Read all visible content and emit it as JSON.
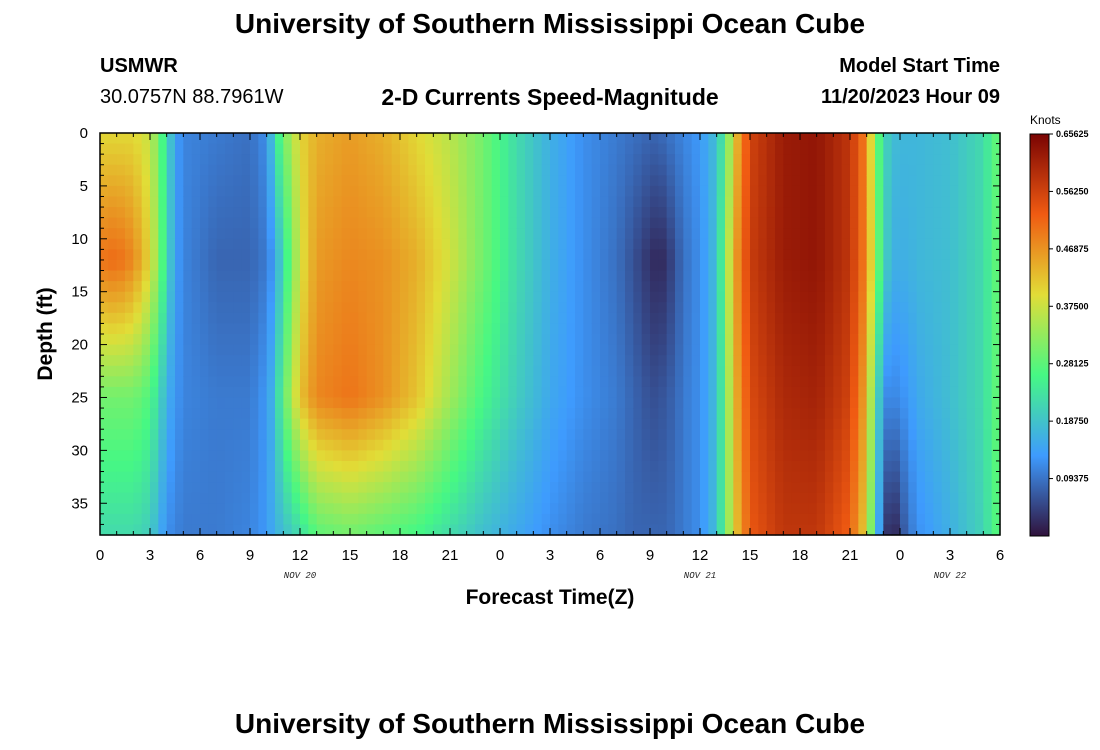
{
  "page": {
    "title_top": "University of Southern Mississippi Ocean Cube",
    "title_bottom": "University of Southern Mississippi Ocean Cube",
    "station_id": "USMWR",
    "coords": "30.0757N  88.7961W",
    "subtitle": "2-D Currents Speed-Magnitude",
    "model_start_label": "Model Start Time",
    "model_start_value": "11/20/2023 Hour 09"
  },
  "colors": {
    "stops": [
      "#30123b",
      "#3e9bfe",
      "#46f884",
      "#e1dd37",
      "#f05b12",
      "#7a0403"
    ]
  },
  "chart_data": {
    "type": "heatmap",
    "title": "2-D Currents Speed-Magnitude",
    "xlabel": "Forecast Time(Z)",
    "ylabel": "Depth (ft)",
    "x_tick_labels": [
      "0",
      "3",
      "6",
      "9",
      "12",
      "15",
      "18",
      "21",
      "0",
      "3",
      "6",
      "9",
      "12",
      "15",
      "18",
      "21",
      "0",
      "3",
      "6"
    ],
    "x_range_hours": [
      0,
      54
    ],
    "day_labels": [
      {
        "text": "NOV 20",
        "hour": 12
      },
      {
        "text": "NOV 21",
        "hour": 36
      },
      {
        "text": "NOV 22",
        "hour": 51
      }
    ],
    "y_tick_labels": [
      "0",
      "5",
      "10",
      "15",
      "20",
      "25",
      "30",
      "35"
    ],
    "y_range_ft": [
      0,
      38
    ],
    "colorbar": {
      "unit": "Knots",
      "range": [
        0.0,
        0.65625
      ],
      "labels": [
        "0.65625",
        "0.56250",
        "0.46875",
        "0.37500",
        "0.28125",
        "0.18750",
        "0.09375"
      ]
    },
    "series": [
      {
        "name": "speed_at_0ft",
        "hours": [
          0,
          2,
          3,
          3.5,
          4,
          4.5,
          5,
          7,
          9,
          10,
          10.5,
          11,
          12,
          13,
          15,
          17,
          19,
          21,
          23,
          25,
          27,
          29,
          31,
          32,
          33,
          33.5,
          34,
          34.5,
          35,
          36,
          37,
          37.5,
          38,
          39,
          41,
          43,
          45,
          46,
          46.5,
          47,
          47.5,
          48,
          48.5,
          49,
          51,
          53,
          54
        ],
        "knots": [
          0.4,
          0.4,
          0.37,
          0.3,
          0.22,
          0.14,
          0.11,
          0.1,
          0.09,
          0.12,
          0.22,
          0.3,
          0.4,
          0.44,
          0.46,
          0.44,
          0.4,
          0.36,
          0.3,
          0.22,
          0.16,
          0.12,
          0.1,
          0.09,
          0.08,
          0.08,
          0.09,
          0.1,
          0.11,
          0.13,
          0.18,
          0.26,
          0.4,
          0.56,
          0.62,
          0.63,
          0.58,
          0.48,
          0.32,
          0.22,
          0.18,
          0.17,
          0.17,
          0.17,
          0.18,
          0.22,
          0.3
        ]
      },
      {
        "name": "speed_at_12ft",
        "hours": [
          0,
          1,
          2,
          3,
          3.5,
          4,
          4.5,
          5,
          7,
          9,
          10,
          10.5,
          11,
          12,
          13,
          15,
          17,
          19,
          21,
          23,
          25,
          27,
          29,
          31,
          32,
          33,
          33.5,
          34,
          34.5,
          35,
          36,
          37,
          37.5,
          38,
          39,
          41,
          43,
          45,
          46,
          46.5,
          47,
          47.5,
          48,
          48.5,
          49,
          51,
          53,
          54
        ],
        "knots": [
          0.5,
          0.51,
          0.48,
          0.4,
          0.32,
          0.22,
          0.14,
          0.11,
          0.08,
          0.08,
          0.1,
          0.14,
          0.22,
          0.38,
          0.46,
          0.48,
          0.47,
          0.44,
          0.38,
          0.3,
          0.22,
          0.16,
          0.12,
          0.09,
          0.06,
          0.03,
          0.02,
          0.03,
          0.06,
          0.09,
          0.12,
          0.18,
          0.3,
          0.44,
          0.57,
          0.62,
          0.63,
          0.58,
          0.48,
          0.34,
          0.22,
          0.16,
          0.16,
          0.16,
          0.17,
          0.18,
          0.22,
          0.3
        ]
      },
      {
        "name": "speed_at_25ft",
        "hours": [
          0,
          2,
          3,
          3.5,
          4,
          4.5,
          5,
          7,
          9,
          10,
          10.5,
          11,
          12,
          13,
          15,
          17,
          19,
          21,
          23,
          25,
          27,
          29,
          31,
          32,
          33,
          33.5,
          34,
          34.5,
          35,
          36,
          37,
          37.5,
          38,
          39,
          41,
          43,
          45,
          46,
          46.5,
          47,
          47.5,
          48,
          48.5,
          49,
          51,
          53,
          54
        ],
        "knots": [
          0.3,
          0.3,
          0.27,
          0.22,
          0.16,
          0.13,
          0.11,
          0.1,
          0.1,
          0.13,
          0.18,
          0.28,
          0.42,
          0.48,
          0.5,
          0.47,
          0.42,
          0.34,
          0.26,
          0.2,
          0.15,
          0.12,
          0.1,
          0.08,
          0.06,
          0.06,
          0.07,
          0.08,
          0.1,
          0.12,
          0.18,
          0.28,
          0.42,
          0.55,
          0.6,
          0.61,
          0.56,
          0.44,
          0.26,
          0.12,
          0.11,
          0.12,
          0.13,
          0.15,
          0.18,
          0.22,
          0.3
        ]
      },
      {
        "name": "speed_at_38ft",
        "hours": [
          0,
          2,
          3,
          3.5,
          4,
          4.5,
          5,
          7,
          9,
          10,
          10.5,
          11,
          12,
          13,
          15,
          17,
          19,
          21,
          23,
          25,
          27,
          29,
          31,
          32,
          33,
          33.5,
          34,
          34.5,
          35,
          36,
          37,
          37.5,
          38,
          39,
          41,
          43,
          45,
          46,
          46.5,
          47,
          47.5,
          48,
          48.5,
          49,
          51,
          53,
          54
        ],
        "knots": [
          0.22,
          0.22,
          0.2,
          0.16,
          0.12,
          0.11,
          0.1,
          0.1,
          0.11,
          0.13,
          0.16,
          0.18,
          0.22,
          0.28,
          0.3,
          0.28,
          0.26,
          0.22,
          0.18,
          0.15,
          0.12,
          0.1,
          0.09,
          0.08,
          0.08,
          0.08,
          0.08,
          0.09,
          0.1,
          0.12,
          0.18,
          0.28,
          0.4,
          0.53,
          0.58,
          0.58,
          0.52,
          0.4,
          0.22,
          0.06,
          0.0,
          0.05,
          0.09,
          0.12,
          0.16,
          0.21,
          0.29
        ]
      }
    ]
  }
}
